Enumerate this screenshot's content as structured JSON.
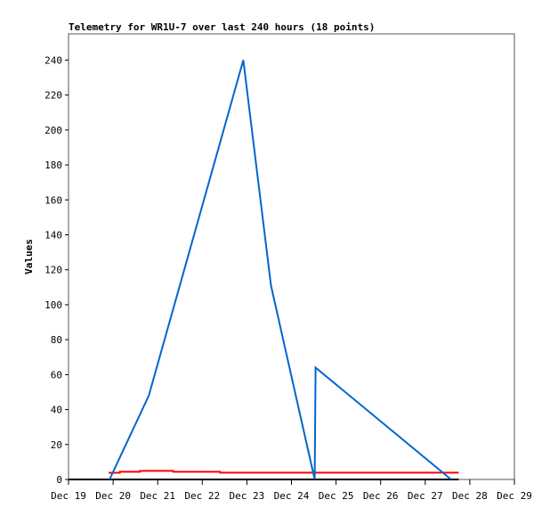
{
  "chart_data": {
    "type": "line",
    "title": "Telemetry for WR1U-7 over last 240 hours (18 points)",
    "xlabel": "",
    "ylabel": "Values",
    "x_ticks": [
      "Dec 19",
      "Dec 20",
      "Dec 21",
      "Dec 22",
      "Dec 23",
      "Dec 24",
      "Dec 25",
      "Dec 26",
      "Dec 27",
      "Dec 28",
      "Dec 29"
    ],
    "y_ticks": [
      0,
      20,
      40,
      60,
      80,
      100,
      120,
      140,
      160,
      180,
      200,
      220,
      240
    ],
    "xlim_days": [
      19,
      29
    ],
    "ylim": [
      0,
      255
    ],
    "grid": false,
    "series": [
      {
        "color": "#000000",
        "points": [
          [
            19.0,
            0
          ],
          [
            27.75,
            0
          ]
        ]
      },
      {
        "color": "#ff0000",
        "points": [
          [
            19.9,
            3.8
          ],
          [
            20.15,
            3.8
          ],
          [
            20.15,
            4.4
          ],
          [
            20.6,
            4.4
          ],
          [
            20.6,
            4.9
          ],
          [
            21.35,
            4.9
          ],
          [
            21.35,
            4.4
          ],
          [
            22.4,
            4.4
          ],
          [
            22.4,
            3.9
          ],
          [
            27.75,
            3.9
          ]
        ]
      },
      {
        "color": "#0066cc",
        "points": [
          [
            19.92,
            0
          ],
          [
            20.8,
            48
          ],
          [
            22.92,
            240
          ],
          [
            23.54,
            111
          ],
          [
            24.52,
            0
          ],
          [
            24.54,
            64
          ],
          [
            27.58,
            0
          ]
        ]
      }
    ]
  }
}
